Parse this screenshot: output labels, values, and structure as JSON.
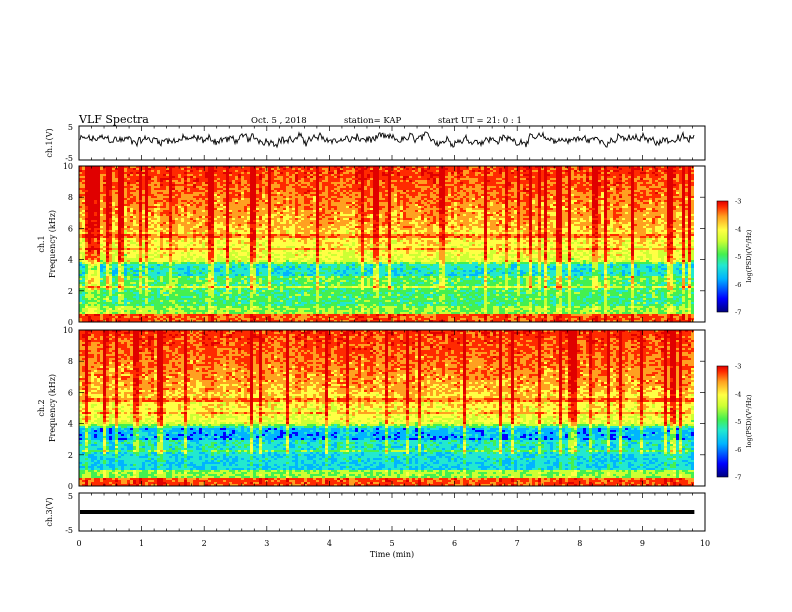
{
  "header": {
    "title": "VLF Spectra",
    "date": "Oct. 5 , 2018",
    "station": "station= KAP",
    "start_time": "start UT = 21: 0 : 1"
  },
  "chart_data": [
    {
      "type": "line",
      "id": "ch1-waveform",
      "ylabel": "ch.1(V)",
      "ylim": [
        -5,
        5
      ],
      "yticks": [
        "5",
        "-5"
      ],
      "xlim": [
        0,
        10
      ],
      "description_series": "noisy waveform around +1 V",
      "mean_value": 1.0
    },
    {
      "type": "heatmap",
      "id": "ch1-spectrogram",
      "ylabel": "ch.1\nFrequency (kHz)",
      "ylabel_lines": [
        "ch.1",
        "Frequency (kHz)"
      ],
      "ylim": [
        0,
        10
      ],
      "yticks": [
        "0",
        "2",
        "4",
        "6",
        "8",
        "10"
      ],
      "xlim": [
        0,
        10
      ],
      "colorbar": {
        "label": "log(PSD)(V²/Hz)",
        "range": [
          -7,
          -3
        ],
        "ticks": [
          "-3",
          "-4",
          "-5",
          "-6",
          "-7"
        ]
      }
    },
    {
      "type": "heatmap",
      "id": "ch2-spectrogram",
      "ylabel": "ch.2\nFrequency (kHz)",
      "ylabel_lines": [
        "ch.2",
        "Frequency (kHz)"
      ],
      "ylim": [
        0,
        10
      ],
      "yticks": [
        "0",
        "2",
        "4",
        "6",
        "8",
        "10"
      ],
      "xlim": [
        0,
        10
      ],
      "colorbar": {
        "label": "log(PSD)(V²/Hz)",
        "range": [
          -7,
          -3
        ],
        "ticks": [
          "-3",
          "-4",
          "-5",
          "-6",
          "-7"
        ]
      }
    },
    {
      "type": "line",
      "id": "ch3-waveform",
      "ylabel": "ch.3(V)",
      "ylim": [
        -5,
        5
      ],
      "yticks": [
        "5",
        "-5"
      ],
      "xlim": [
        0,
        10
      ],
      "constant_value": 0.0
    }
  ],
  "x_axis": {
    "label": "Time (min)",
    "ticks": [
      "0",
      "1",
      "2",
      "3",
      "4",
      "5",
      "6",
      "7",
      "8",
      "9",
      "10"
    ],
    "data_end": 9.83
  },
  "colors": {
    "colormap": [
      "#00007f",
      "#0000ff",
      "#00b4ff",
      "#22e8d0",
      "#44f050",
      "#ccff33",
      "#ffff44",
      "#ffa020",
      "#ff2a00",
      "#e00000"
    ]
  }
}
